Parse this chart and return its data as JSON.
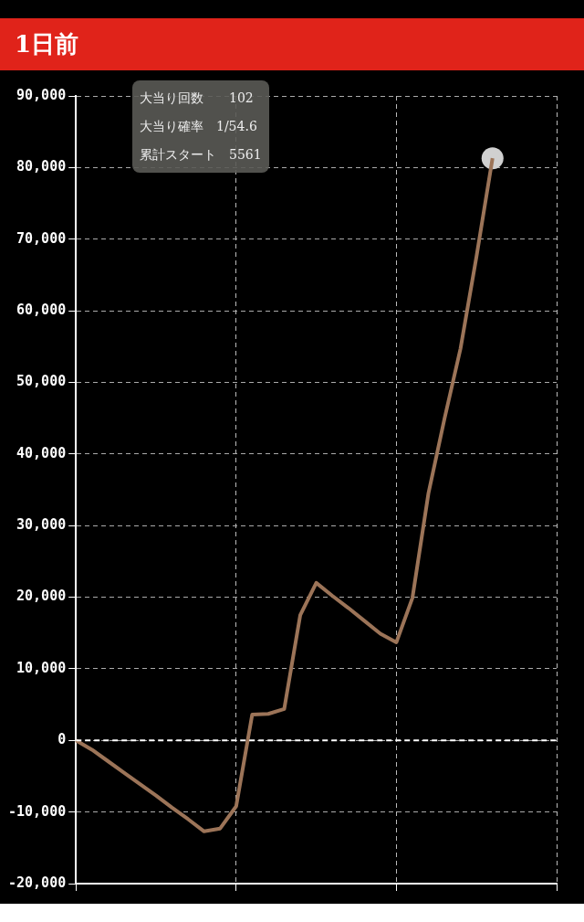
{
  "chart_data": {
    "type": "line",
    "title": "1日前",
    "annotations": [
      "大当り回数　　102",
      "大当り確率　1/54.6",
      "累計スタート　5561"
    ],
    "categories": [
      null,
      null,
      null,
      null,
      null,
      null,
      null,
      null,
      null,
      null,
      null,
      null,
      null,
      null,
      null,
      null,
      null,
      null,
      null,
      null,
      null,
      null,
      null,
      null,
      null,
      null,
      null,
      null,
      null,
      null,
      null
    ],
    "series": [
      {
        "type": "line",
        "color": "#9c7458",
        "values": [
          0,
          -1300,
          -2900,
          -4500,
          -6100,
          -7700,
          -9400,
          -11000,
          -12700,
          -12300,
          -9200,
          3600,
          3700,
          4400,
          17500,
          22000,
          20200,
          18500,
          16700,
          14900,
          13700,
          19900,
          34500,
          44900,
          54700,
          67600,
          81300,
          null,
          null,
          null,
          null
        ]
      },
      {
        "type": "scatter",
        "marker": "circle",
        "color": "#d0d0d0",
        "values": [
          null,
          null,
          null,
          null,
          null,
          null,
          null,
          null,
          null,
          null,
          null,
          null,
          null,
          null,
          null,
          null,
          null,
          null,
          null,
          null,
          null,
          null,
          null,
          null,
          null,
          null,
          81300,
          null,
          null,
          null,
          null
        ]
      }
    ],
    "ylim": [
      -20000,
      90000
    ],
    "yticks": [
      {
        "value": -20000,
        "label": "-20,000"
      },
      {
        "value": -10000,
        "label": "-10,000"
      },
      0,
      {
        "value": 10000,
        "label": "10,000"
      },
      {
        "value": 20000,
        "label": "20,000"
      },
      {
        "value": 30000,
        "label": "30,000"
      },
      {
        "value": 40000,
        "label": "40,000"
      },
      {
        "value": 50000,
        "label": "50,000"
      },
      {
        "value": 60000,
        "label": "60,000"
      },
      {
        "value": 70000,
        "label": "70,000"
      },
      {
        "value": 80000,
        "label": "80,000"
      },
      {
        "value": 90000,
        "label": "90,000"
      }
    ],
    "ref_lines": [
      {
        "axis": "y",
        "value": 0,
        "color": "#ffffff",
        "line_style": "dashed"
      }
    ],
    "grid": true,
    "legend": false,
    "marker": "none",
    "line_style": "solid"
  }
}
